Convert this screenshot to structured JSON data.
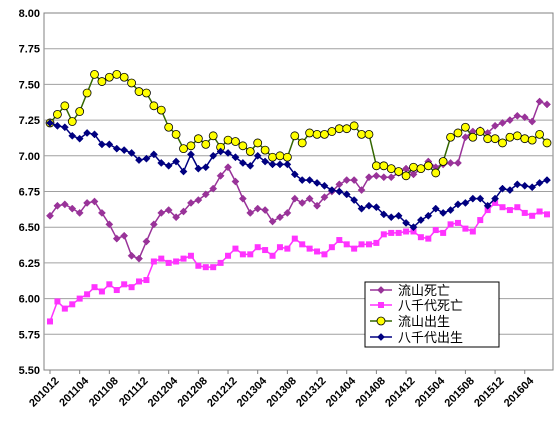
{
  "chart_data": {
    "type": "line",
    "ylim": [
      5.5,
      8.0
    ],
    "yticks": [
      "5.50",
      "5.75",
      "6.00",
      "6.25",
      "6.50",
      "6.75",
      "7.00",
      "7.25",
      "7.50",
      "7.75",
      "8.00"
    ],
    "x": [
      "201012",
      "201101",
      "201102",
      "201103",
      "201104",
      "201105",
      "201106",
      "201107",
      "201108",
      "201109",
      "201110",
      "201111",
      "201112",
      "201201",
      "201202",
      "201203",
      "201204",
      "201205",
      "201206",
      "201207",
      "201208",
      "201209",
      "201210",
      "201211",
      "201212",
      "201301",
      "201302",
      "201303",
      "201304",
      "201305",
      "201306",
      "201307",
      "201308",
      "201309",
      "201310",
      "201311",
      "201312",
      "201401",
      "201402",
      "201403",
      "201404",
      "201405",
      "201406",
      "201407",
      "201408",
      "201409",
      "201410",
      "201411",
      "201412",
      "201501",
      "201502",
      "201503",
      "201504",
      "201505",
      "201506",
      "201507",
      "201508",
      "201509",
      "201510",
      "201511",
      "201512",
      "201601",
      "201602",
      "201603",
      "201604",
      "201605",
      "201606",
      "201607"
    ],
    "xtick_labels": [
      "201012",
      "201104",
      "201108",
      "201112",
      "201204",
      "201208",
      "201212",
      "201304",
      "201308",
      "201312",
      "201404",
      "201408",
      "201412",
      "201504",
      "201508",
      "201512",
      "201604"
    ],
    "grid": true,
    "legend_position": "bottom-right",
    "series": [
      {
        "name": "流山死亡",
        "color": "#993399",
        "marker": "diamond",
        "values": [
          6.58,
          6.65,
          6.66,
          6.63,
          6.6,
          6.67,
          6.68,
          6.6,
          6.52,
          6.42,
          6.44,
          6.3,
          6.28,
          6.4,
          6.52,
          6.6,
          6.62,
          6.57,
          6.61,
          6.67,
          6.69,
          6.73,
          6.77,
          6.86,
          6.92,
          6.82,
          6.7,
          6.6,
          6.63,
          6.62,
          6.54,
          6.57,
          6.6,
          6.7,
          6.67,
          6.7,
          6.65,
          6.71,
          6.75,
          6.8,
          6.83,
          6.83,
          6.76,
          6.85,
          6.86,
          6.85,
          6.85,
          6.88,
          6.91,
          6.87,
          6.91,
          6.96,
          6.92,
          6.94,
          6.95,
          6.95,
          7.13,
          7.17,
          7.18,
          7.16,
          7.21,
          7.23,
          7.25,
          7.28,
          7.27,
          7.24,
          7.38,
          7.36
        ]
      },
      {
        "name": "八千代死亡",
        "color": "#ff33ff",
        "marker": "square",
        "values": [
          5.84,
          5.98,
          5.93,
          5.96,
          6.0,
          6.03,
          6.08,
          6.05,
          6.1,
          6.06,
          6.1,
          6.08,
          6.12,
          6.13,
          6.26,
          6.28,
          6.25,
          6.26,
          6.28,
          6.3,
          6.23,
          6.22,
          6.22,
          6.25,
          6.3,
          6.35,
          6.31,
          6.31,
          6.36,
          6.34,
          6.3,
          6.36,
          6.35,
          6.42,
          6.38,
          6.35,
          6.33,
          6.31,
          6.36,
          6.41,
          6.38,
          6.35,
          6.38,
          6.38,
          6.39,
          6.45,
          6.46,
          6.46,
          6.47,
          6.47,
          6.43,
          6.42,
          6.48,
          6.46,
          6.52,
          6.53,
          6.49,
          6.47,
          6.55,
          6.62,
          6.67,
          6.64,
          6.62,
          6.64,
          6.6,
          6.58,
          6.61,
          6.59
        ]
      },
      {
        "name": "流山出生",
        "color": "#336600",
        "marker": "circle",
        "markerFill": "#ffff00",
        "values": [
          7.23,
          7.29,
          7.35,
          7.24,
          7.31,
          7.44,
          7.57,
          7.52,
          7.55,
          7.57,
          7.55,
          7.51,
          7.45,
          7.44,
          7.35,
          7.32,
          7.2,
          7.15,
          7.05,
          7.07,
          7.12,
          7.08,
          7.14,
          7.06,
          7.11,
          7.1,
          7.07,
          7.03,
          7.09,
          7.04,
          6.99,
          7.0,
          6.99,
          7.14,
          7.09,
          7.16,
          7.15,
          7.15,
          7.17,
          7.19,
          7.19,
          7.21,
          7.15,
          7.15,
          6.93,
          6.93,
          6.91,
          6.89,
          6.86,
          6.92,
          6.91,
          6.93,
          6.88,
          6.96,
          7.13,
          7.16,
          7.2,
          7.13,
          7.17,
          7.12,
          7.12,
          7.09,
          7.13,
          7.14,
          7.12,
          7.11,
          7.15,
          7.09
        ]
      },
      {
        "name": "八千代出生",
        "color": "#000080",
        "marker": "diamond",
        "values": [
          7.23,
          7.21,
          7.2,
          7.14,
          7.12,
          7.16,
          7.15,
          7.08,
          7.08,
          7.05,
          7.04,
          7.02,
          6.97,
          6.98,
          7.01,
          6.95,
          6.93,
          6.96,
          6.89,
          7.01,
          6.91,
          6.92,
          7.0,
          7.03,
          7.02,
          6.99,
          6.95,
          6.93,
          7.0,
          6.96,
          6.94,
          6.94,
          6.94,
          6.87,
          6.83,
          6.83,
          6.81,
          6.79,
          6.76,
          6.75,
          6.73,
          6.69,
          6.63,
          6.65,
          6.64,
          6.59,
          6.57,
          6.58,
          6.53,
          6.5,
          6.55,
          6.58,
          6.63,
          6.6,
          6.62,
          6.66,
          6.67,
          6.7,
          6.7,
          6.65,
          6.7,
          6.77,
          6.76,
          6.8,
          6.79,
          6.78,
          6.81,
          6.83
        ]
      }
    ]
  }
}
